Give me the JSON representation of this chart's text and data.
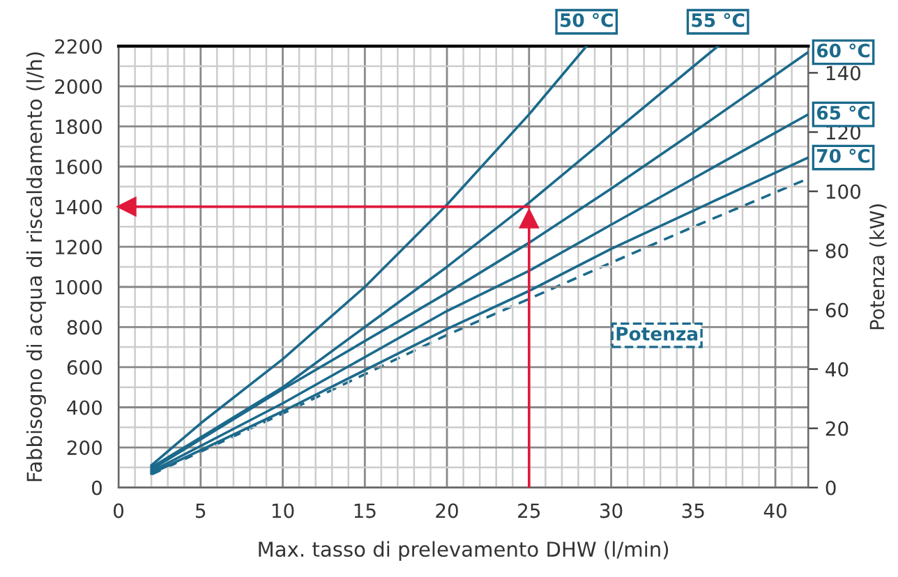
{
  "chart_data": {
    "type": "line",
    "xlabel": "Max. tasso di prelevamento DHW (l/min)",
    "ylabel": "Fabbisogno di acqua di riscaldamento (l/h)",
    "y2label": "Potenza (kW)",
    "xlim": [
      0,
      42
    ],
    "ylim": [
      0,
      2200
    ],
    "y2lim": [
      0,
      149
    ],
    "xticks": [
      0,
      {
        "value": 1,
        "label": null
      },
      {
        "value": 2,
        "label": null
      },
      {
        "value": 3,
        "label": null
      },
      {
        "value": 4,
        "label": null
      },
      5,
      {
        "value": 6,
        "label": null
      },
      {
        "value": 7,
        "label": null
      },
      {
        "value": 8,
        "label": null
      },
      {
        "value": 9,
        "label": null
      },
      10,
      {
        "value": 11,
        "label": null
      },
      {
        "value": 12,
        "label": null
      },
      {
        "value": 13,
        "label": null
      },
      {
        "value": 14,
        "label": null
      },
      15,
      {
        "value": 16,
        "label": null
      },
      {
        "value": 17,
        "label": null
      },
      {
        "value": 18,
        "label": null
      },
      {
        "value": 19,
        "label": null
      },
      20,
      {
        "value": 21,
        "label": null
      },
      {
        "value": 22,
        "label": null
      },
      {
        "value": 23,
        "label": null
      },
      {
        "value": 24,
        "label": null
      },
      25,
      {
        "value": 26,
        "label": null
      },
      {
        "value": 27,
        "label": null
      },
      {
        "value": 28,
        "label": null
      },
      {
        "value": 29,
        "label": null
      },
      30,
      {
        "value": 31,
        "label": null
      },
      {
        "value": 32,
        "label": null
      },
      {
        "value": 33,
        "label": null
      },
      {
        "value": 34,
        "label": null
      },
      35,
      {
        "value": 36,
        "label": null
      },
      {
        "value": 37,
        "label": null
      },
      {
        "value": 38,
        "label": null
      },
      {
        "value": 39,
        "label": null
      },
      40,
      {
        "value": 41,
        "label": null
      },
      {
        "value": 42,
        "label": null
      }
    ],
    "yticks": [
      0,
      {
        "value": 100,
        "label": null
      },
      200,
      {
        "value": 300,
        "label": null
      },
      400,
      {
        "value": 500,
        "label": null
      },
      600,
      {
        "value": 700,
        "label": null
      },
      800,
      {
        "value": 900,
        "label": null
      },
      1000,
      {
        "value": 1100,
        "label": null
      },
      1200,
      {
        "value": 1300,
        "label": null
      },
      1400,
      {
        "value": 1500,
        "label": null
      },
      1600,
      {
        "value": 1700,
        "label": null
      },
      1800,
      {
        "value": 1900,
        "label": null
      },
      2000,
      {
        "value": 2100,
        "label": null
      },
      2200
    ],
    "y2ticks": [
      0,
      20,
      40,
      60,
      80,
      100,
      120,
      140
    ],
    "grid": true,
    "legend": false,
    "marker": "none",
    "series": [
      {
        "name": "50 °C",
        "color": "#1b6a8c",
        "line_style": "solid",
        "x": [
          2,
          5,
          10,
          15,
          20,
          25,
          28.5
        ],
        "values": [
          110,
          320,
          640,
          1000,
          1410,
          1860,
          2200
        ]
      },
      {
        "name": "55 °C",
        "color": "#1b6a8c",
        "line_style": "solid",
        "x": [
          2,
          10,
          15,
          20,
          25,
          30,
          36.5
        ],
        "values": [
          100,
          500,
          800,
          1100,
          1420,
          1760,
          2200
        ]
      },
      {
        "name": "60 °C",
        "color": "#1b6a8c",
        "line_style": "solid",
        "x": [
          2,
          10,
          20,
          25,
          30,
          35,
          42
        ],
        "values": [
          90,
          490,
          970,
          1220,
          1490,
          1770,
          2170
        ]
      },
      {
        "name": "65 °C",
        "color": "#1b6a8c",
        "line_style": "solid",
        "x": [
          2,
          10,
          20,
          25,
          30,
          35,
          42
        ],
        "values": [
          80,
          420,
          880,
          1080,
          1310,
          1540,
          1860
        ]
      },
      {
        "name": "70 °C",
        "color": "#1b6a8c",
        "line_style": "solid",
        "x": [
          2,
          10,
          20,
          25,
          30,
          35,
          42
        ],
        "values": [
          70,
          380,
          790,
          980,
          1190,
          1380,
          1645
        ]
      },
      {
        "name": "Potenza",
        "color": "#1b6a8c",
        "line_style": "dashed",
        "axis": "y2",
        "x": [
          2,
          10,
          20,
          25,
          30,
          35,
          42
        ],
        "values": [
          4.4,
          25,
          51.5,
          63.7,
          75.9,
          88,
          104.3
        ]
      }
    ],
    "ref_lines": [
      {
        "axis": "x",
        "value": 25,
        "color": "#e0193b"
      },
      {
        "axis": "y",
        "value": 1400,
        "color": "#e0193b"
      }
    ]
  }
}
